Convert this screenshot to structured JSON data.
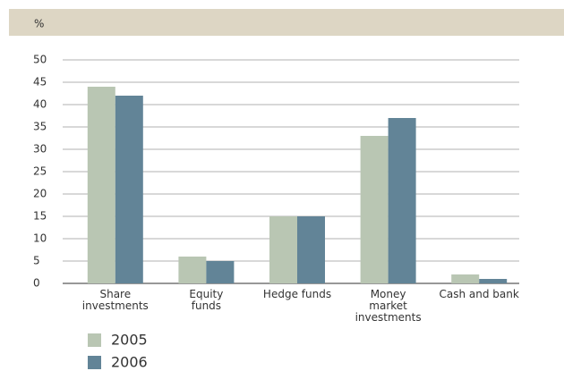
{
  "chart_data": {
    "type": "bar",
    "y_label": "%",
    "categories": [
      "Share investments",
      "Equity funds",
      "Hedge funds",
      "Money market investments",
      "Cash and bank"
    ],
    "series": [
      {
        "name": "2005",
        "color": "#b9c6b3",
        "values": [
          44,
          6,
          15,
          33,
          2
        ]
      },
      {
        "name": "2006",
        "color": "#628497",
        "values": [
          42,
          5,
          15,
          37,
          1
        ]
      }
    ],
    "ylim": [
      0,
      50
    ],
    "yticks": [
      0,
      5,
      10,
      15,
      20,
      25,
      30,
      35,
      40,
      45,
      50
    ],
    "grid": true
  }
}
